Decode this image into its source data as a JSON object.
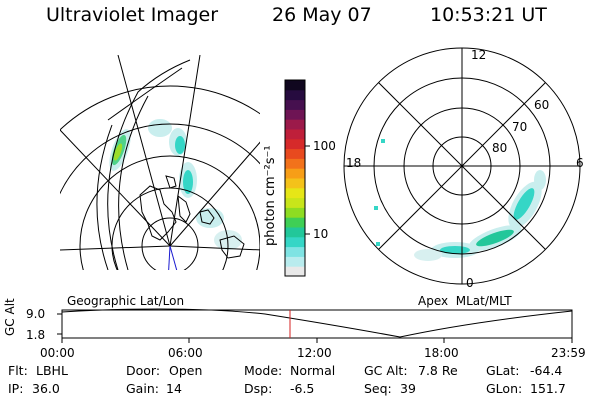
{
  "header": {
    "instrument": "Ultraviolet Imager",
    "date": "26 May 07",
    "time": "10:53:21 UT"
  },
  "colorbar": {
    "unit_label": "photon cm⁻²s⁻¹",
    "ticks": [
      "100",
      "10"
    ],
    "colors": [
      "#e9e9e9",
      "#b9ecee",
      "#7fe3e3",
      "#35d6c6",
      "#22c79a",
      "#3fcf55",
      "#8edc22",
      "#c8e51a",
      "#e6e617",
      "#f4c21a",
      "#f79e17",
      "#f2721b",
      "#e84a1f",
      "#d62a2a",
      "#bf1f3a",
      "#9c1a4a",
      "#6e1454",
      "#46104f",
      "#260b3f",
      "#10071f"
    ]
  },
  "left_map": {
    "caption": "Geographic Lat/Lon"
  },
  "right_map": {
    "caption": "Apex  MLat/MLT",
    "mlt_labels": [
      "12",
      "18",
      "6",
      "0"
    ],
    "lat_labels": [
      "60",
      "70",
      "80"
    ]
  },
  "altitude_plot": {
    "ylabel": "GC Alt",
    "yticks": [
      "9.0",
      "1.8"
    ],
    "xticks": [
      "00:00",
      "06:00",
      "12:00",
      "18:00",
      "23:59"
    ],
    "marker_time": "10:53",
    "marker_color": "#d62020"
  },
  "info": {
    "row1": [
      {
        "label": "Flt:",
        "value": "LBHL"
      },
      {
        "label": "Door:",
        "value": "Open"
      },
      {
        "label": "Mode:",
        "value": "Normal"
      },
      {
        "label": "GC Alt:",
        "value": "7.8 Re"
      },
      {
        "label": "GLat:",
        "value": "-64.4"
      }
    ],
    "row2": [
      {
        "label": "IP:",
        "value": "36.0"
      },
      {
        "label": "Gain:",
        "value": "14"
      },
      {
        "label": "Dsp:",
        "value": "-6.5"
      },
      {
        "label": "Seq:",
        "value": "39"
      },
      {
        "label": "GLon:",
        "value": "151.7"
      }
    ]
  }
}
